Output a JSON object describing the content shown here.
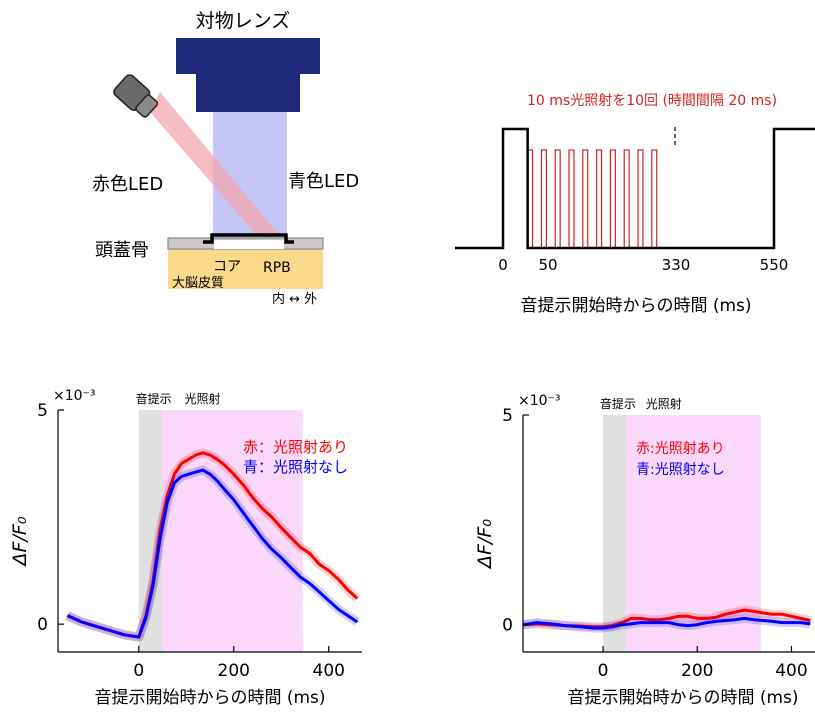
{
  "setup_diagram": {
    "objective_label": "対物レンズ",
    "red_led_label": "赤色LED",
    "blue_led_label": "青色LED",
    "skull_label": "頭蓋骨",
    "core_label": "コア",
    "rpb_label": "RPB",
    "cortex_label": "大脳皮質",
    "direction_label": "内 ↔ 外"
  },
  "stimulus_protocol": {
    "title": "10 ms光照射を10回 (時間間隔 20 ms)",
    "tick_labels": [
      "0",
      "50",
      "330",
      "550"
    ],
    "xlabel": "音提示開始時からの時間 (ms)",
    "colors": {
      "sound": "#000000",
      "light": "#d42020"
    }
  },
  "chart_data": [
    {
      "type": "line",
      "x": [
        -150,
        -120,
        -90,
        -60,
        -30,
        0,
        15,
        30,
        45,
        60,
        75,
        90,
        105,
        120,
        135,
        150,
        165,
        180,
        200,
        220,
        240,
        260,
        280,
        300,
        320,
        340,
        360,
        380,
        400,
        420,
        440,
        460
      ],
      "series": [
        {
          "name": "赤：光照射あり",
          "color": "#ff0000",
          "values": [
            0.2,
            0.05,
            -0.05,
            -0.15,
            -0.25,
            -0.3,
            0.2,
            1.0,
            2.2,
            3.0,
            3.5,
            3.75,
            3.85,
            3.95,
            4.0,
            3.95,
            3.85,
            3.72,
            3.5,
            3.25,
            2.95,
            2.7,
            2.5,
            2.25,
            2.02,
            1.8,
            1.65,
            1.4,
            1.25,
            1.05,
            0.8,
            0.6
          ]
        },
        {
          "name": "青：光照射なし",
          "color": "#0000ff",
          "values": [
            0.2,
            0.05,
            -0.05,
            -0.15,
            -0.25,
            -0.3,
            0.15,
            0.9,
            2.0,
            2.85,
            3.3,
            3.45,
            3.5,
            3.55,
            3.6,
            3.5,
            3.35,
            3.15,
            2.9,
            2.6,
            2.3,
            2.0,
            1.75,
            1.55,
            1.32,
            1.1,
            0.95,
            0.75,
            0.55,
            0.35,
            0.2,
            0.05
          ]
        }
      ],
      "xlim": [
        -170,
        470
      ],
      "ylim": [
        -0.65,
        5
      ],
      "xticks": [
        0,
        200,
        400
      ],
      "yticks": [
        0,
        5
      ],
      "exponent_label": "×10⁻³",
      "ylabel": "ΔF/F₀",
      "xlabel": "音提示開始時からの時間 (ms)",
      "shaded_regions": [
        {
          "label": "音提示",
          "start": 0,
          "end": 50,
          "color": "#e0e0e0"
        },
        {
          "label": "光照射",
          "start": 50,
          "end": 345,
          "color": "#fbd8fb"
        }
      ],
      "legend_position": "top-right"
    },
    {
      "type": "line",
      "x": [
        -170,
        -140,
        -110,
        -80,
        -50,
        -20,
        0,
        20,
        40,
        60,
        80,
        100,
        120,
        140,
        160,
        180,
        200,
        220,
        240,
        260,
        280,
        300,
        320,
        340,
        360,
        380,
        400,
        420,
        440
      ],
      "series": [
        {
          "name": "赤:光照射あり",
          "color": "#ff0000",
          "values": [
            0.0,
            0.02,
            0.0,
            -0.02,
            -0.03,
            -0.05,
            -0.05,
            -0.02,
            0.05,
            0.15,
            0.15,
            0.12,
            0.12,
            0.15,
            0.2,
            0.2,
            0.15,
            0.15,
            0.18,
            0.25,
            0.3,
            0.35,
            0.32,
            0.28,
            0.25,
            0.25,
            0.2,
            0.15,
            0.1
          ]
        },
        {
          "name": "青:光照射なし",
          "color": "#0000ff",
          "values": [
            0.0,
            0.05,
            0.02,
            -0.02,
            -0.05,
            -0.08,
            -0.08,
            -0.05,
            0.0,
            0.02,
            0.05,
            0.05,
            0.05,
            0.05,
            0.0,
            -0.02,
            0.0,
            0.05,
            0.08,
            0.1,
            0.12,
            0.15,
            0.12,
            0.1,
            0.08,
            0.05,
            0.05,
            0.05,
            0.02
          ]
        }
      ],
      "xlim": [
        -170,
        450
      ],
      "ylim": [
        -0.65,
        5
      ],
      "xticks": [
        0,
        200,
        400
      ],
      "yticks": [
        0,
        5
      ],
      "exponent_label": "×10⁻³",
      "ylabel": "ΔF/F₀",
      "xlabel": "音提示開始時からの時間 (ms)",
      "shaded_regions": [
        {
          "label": "音提示",
          "start": 0,
          "end": 50,
          "color": "#e0e0e0"
        },
        {
          "label": "光照射",
          "start": 50,
          "end": 335,
          "color": "#fbd8fb"
        }
      ],
      "legend_position": "top-right"
    }
  ]
}
